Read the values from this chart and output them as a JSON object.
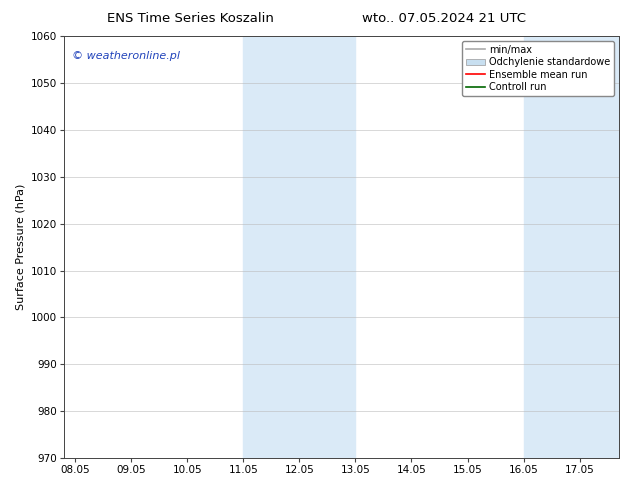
{
  "title_left": "ENS Time Series Koszalin",
  "title_right": "wto.. 07.05.2024 21 UTC",
  "ylabel": "Surface Pressure (hPa)",
  "ylim": [
    970,
    1060
  ],
  "yticks": [
    970,
    980,
    990,
    1000,
    1010,
    1020,
    1030,
    1040,
    1050,
    1060
  ],
  "xtick_labels": [
    "08.05",
    "09.05",
    "10.05",
    "11.05",
    "12.05",
    "13.05",
    "14.05",
    "15.05",
    "16.05",
    "17.05"
  ],
  "xtick_positions": [
    0,
    1,
    2,
    3,
    4,
    5,
    6,
    7,
    8,
    9
  ],
  "xlim": [
    -0.2,
    9.7
  ],
  "band1_x1": 3.0,
  "band1_x2": 5.0,
  "band2_x1": 8.0,
  "band2_x2": 9.7,
  "shaded_color": "#daeaf7",
  "background_color": "#ffffff",
  "watermark_text": "© weatheronline.pl",
  "watermark_color": "#2244bb",
  "legend_entries": [
    {
      "label": "min/max",
      "color": "#aaaaaa",
      "lw": 1.2,
      "style": "solid"
    },
    {
      "label": "Odchylenie standardowe",
      "color": "#c8dff0",
      "lw": 6,
      "style": "solid"
    },
    {
      "label": "Ensemble mean run",
      "color": "#ff0000",
      "lw": 1.2,
      "style": "solid"
    },
    {
      "label": "Controll run",
      "color": "#006600",
      "lw": 1.2,
      "style": "solid"
    }
  ],
  "title_fontsize": 9.5,
  "axis_fontsize": 8,
  "tick_fontsize": 7.5,
  "watermark_fontsize": 8,
  "legend_fontsize": 7
}
